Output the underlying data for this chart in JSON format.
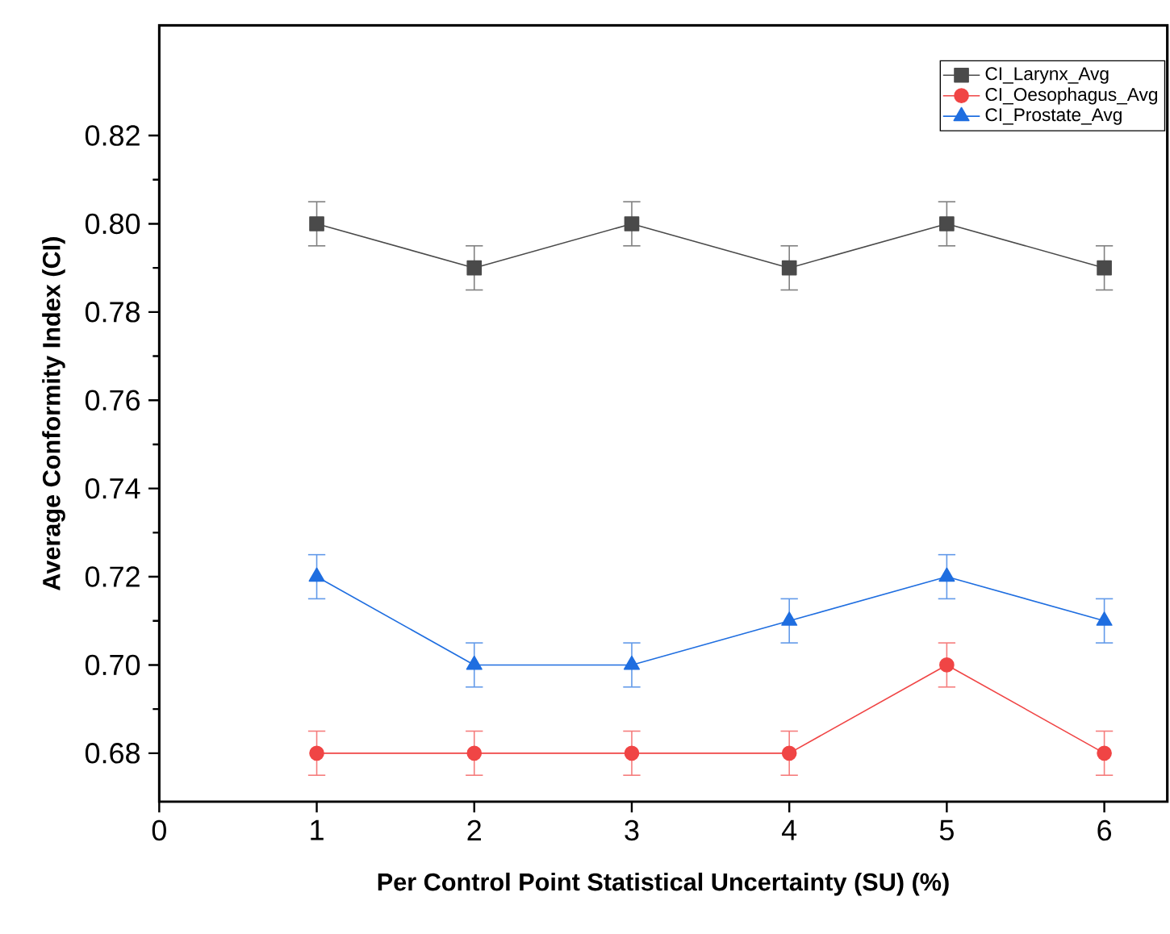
{
  "chart_data": {
    "type": "line",
    "xlabel": "Per Control Point Statistical Uncertainty (SU) (%)",
    "ylabel": "Average Conformity Index (CI)",
    "x": [
      1,
      2,
      3,
      4,
      5,
      6
    ],
    "series": [
      {
        "name": "CI_Larynx_Avg",
        "color": "#4a4a4a",
        "marker": "square",
        "values": [
          0.8,
          0.79,
          0.8,
          0.79,
          0.8,
          0.79
        ],
        "errors": [
          0.005,
          0.005,
          0.005,
          0.005,
          0.005,
          0.005
        ]
      },
      {
        "name": "CI_Oesophagus_Avg",
        "color": "#f04545",
        "marker": "circle",
        "values": [
          0.68,
          0.68,
          0.68,
          0.68,
          0.7,
          0.68
        ],
        "errors": [
          0.005,
          0.005,
          0.005,
          0.005,
          0.005,
          0.005
        ]
      },
      {
        "name": "CI_Prostate_Avg",
        "color": "#1f6ee0",
        "marker": "triangle",
        "values": [
          0.72,
          0.7,
          0.7,
          0.71,
          0.72,
          0.71
        ],
        "errors": [
          0.005,
          0.005,
          0.005,
          0.005,
          0.005,
          0.005
        ]
      }
    ],
    "xlim": [
      0,
      6.4
    ],
    "ylim": [
      0.669,
      0.845
    ],
    "xticks": [
      0,
      1,
      2,
      3,
      4,
      5,
      6
    ],
    "yticks": [
      {
        "value": 0.68,
        "label": "0.68"
      },
      {
        "value": 0.7,
        "label": "0.70"
      },
      {
        "value": 0.72,
        "label": "0.72"
      },
      {
        "value": 0.74,
        "label": "0.74"
      },
      {
        "value": 0.76,
        "label": "0.76"
      },
      {
        "value": 0.78,
        "label": "0.78"
      },
      {
        "value": 0.8,
        "label": "0.80"
      },
      {
        "value": 0.82,
        "label": "0.82"
      }
    ],
    "grid": false,
    "legend": "top right",
    "line_style": "solid"
  }
}
